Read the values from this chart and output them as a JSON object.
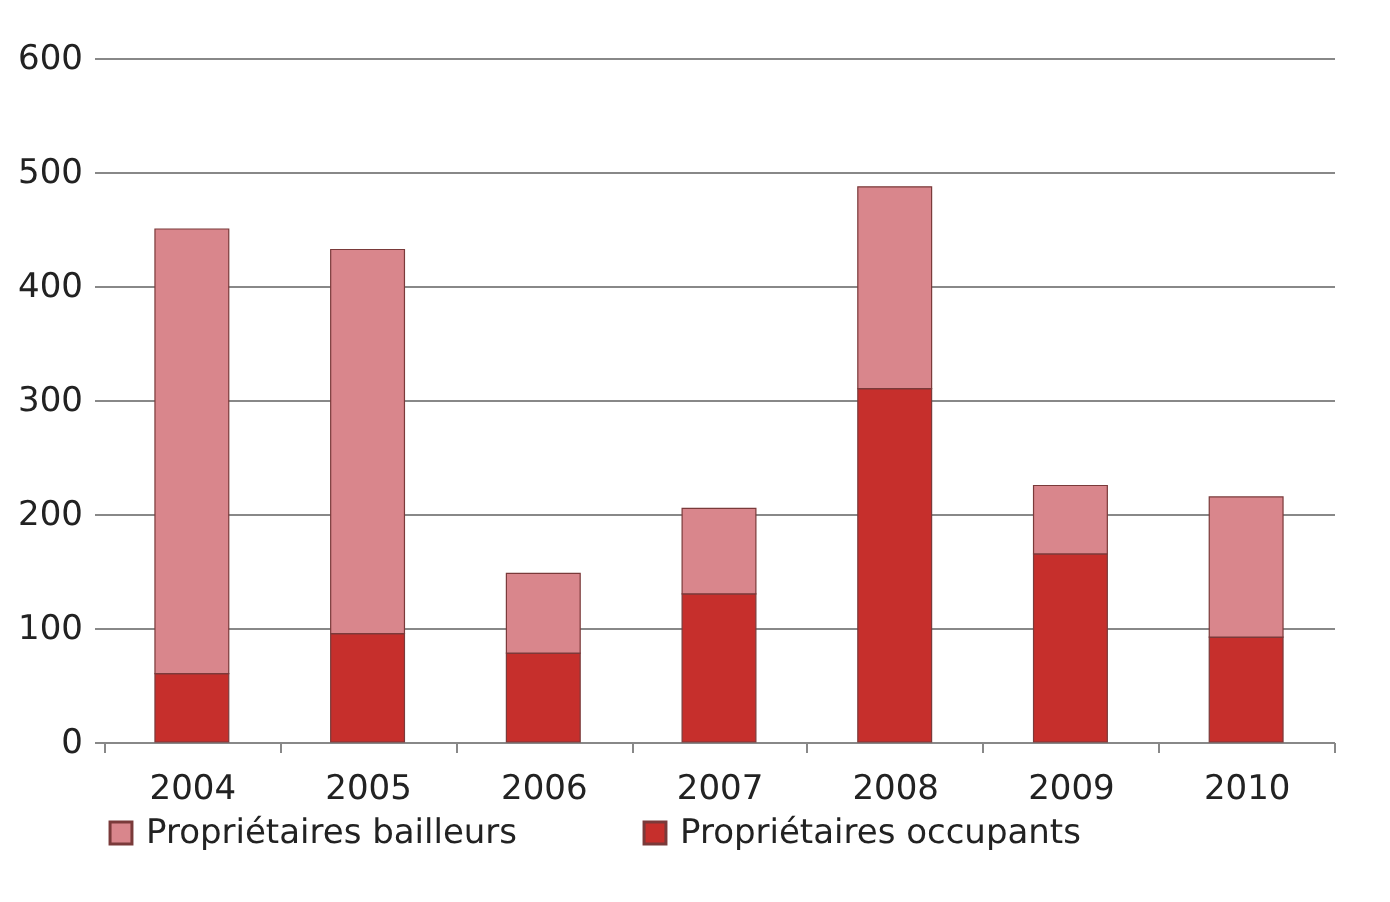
{
  "chart_data": {
    "type": "bar",
    "stacked": true,
    "categories": [
      "2004",
      "2005",
      "2006",
      "2007",
      "2008",
      "2009",
      "2010"
    ],
    "series": [
      {
        "name": "Propriétaires occupants",
        "color": "#c62f2c",
        "values": [
          60,
          95,
          78,
          130,
          310,
          165,
          92
        ]
      },
      {
        "name": "Propriétaires bailleurs",
        "color": "#d9868c",
        "values": [
          390,
          337,
          70,
          75,
          177,
          60,
          123
        ]
      }
    ],
    "ylim": [
      0,
      600
    ],
    "yticks": [
      0,
      100,
      200,
      300,
      400,
      500,
      600
    ],
    "grid": "y",
    "legend": "bottom"
  }
}
